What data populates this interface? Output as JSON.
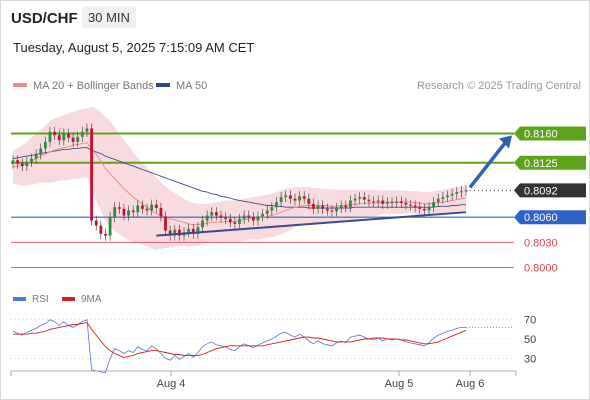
{
  "header": {
    "symbol": "USD/CHF",
    "timeframe": "30 MIN",
    "datetime": "Tuesday, August 5, 2025 7:15:09 AM CET"
  },
  "legend": [
    {
      "label": "MA 20 + Bollinger Bands",
      "color": "#f08a8a"
    },
    {
      "label": "MA 50",
      "color": "#2e4a85"
    }
  ],
  "credit": "Research © 2025 Trading Central",
  "colors": {
    "up": "#2e8b3a",
    "down": "#c8102e",
    "resistance": "#5ca51a",
    "support": "#2d62c8",
    "target_low": "#e04848",
    "current": "#333333",
    "trend": "#3a4a8c",
    "arrow": "#2d62a8",
    "band": "#f8d4d8",
    "ma20": "#e88888",
    "ma50": "#3a4d8a",
    "rsi": "#4f7ad0",
    "rsi_ma": "#d42020"
  },
  "chart_data": [
    {
      "type": "candlestick",
      "title": "USD/CHF",
      "timeframe": "30 MIN",
      "x_ticks": [
        "Aug 4",
        "Aug 5",
        "Aug 6"
      ],
      "ylim": [
        0.7985,
        0.82
      ],
      "grid": false,
      "price_levels": [
        {
          "label": "0.8160",
          "value": 0.816,
          "kind": "resistance"
        },
        {
          "label": "0.8125",
          "value": 0.8125,
          "kind": "resistance"
        },
        {
          "label": "0.8092",
          "value": 0.8092,
          "kind": "current"
        },
        {
          "label": "0.8060",
          "value": 0.806,
          "kind": "support"
        },
        {
          "label": "0.8030",
          "value": 0.803,
          "kind": "target_low"
        },
        {
          "label": "0.8000",
          "value": 0.8,
          "kind": "target_low"
        }
      ],
      "close": [
        0.8128,
        0.8124,
        0.8121,
        0.8126,
        0.813,
        0.8135,
        0.8142,
        0.815,
        0.8162,
        0.8158,
        0.8152,
        0.816,
        0.8155,
        0.815,
        0.8156,
        0.8162,
        0.8166,
        0.8056,
        0.805,
        0.804,
        0.8038,
        0.806,
        0.8072,
        0.807,
        0.8062,
        0.8068,
        0.8066,
        0.8074,
        0.807,
        0.8068,
        0.8075,
        0.8071,
        0.8061,
        0.8044,
        0.8038,
        0.8045,
        0.8038,
        0.8042,
        0.8046,
        0.804,
        0.8048,
        0.8056,
        0.8062,
        0.8066,
        0.8062,
        0.806,
        0.8058,
        0.8054,
        0.8052,
        0.8058,
        0.8062,
        0.806,
        0.8056,
        0.8061,
        0.8064,
        0.8068,
        0.8072,
        0.8078,
        0.8084,
        0.8086,
        0.8082,
        0.808,
        0.8085,
        0.8082,
        0.8076,
        0.807,
        0.8074,
        0.807,
        0.8068,
        0.8067,
        0.8071,
        0.8074,
        0.8072,
        0.808,
        0.8082,
        0.8084,
        0.8081,
        0.8079,
        0.8078,
        0.808,
        0.8076,
        0.8078,
        0.8077,
        0.8079,
        0.8077,
        0.8075,
        0.8074,
        0.8072,
        0.807,
        0.8068,
        0.8072,
        0.8078,
        0.8082,
        0.8084,
        0.8086,
        0.8088,
        0.809,
        0.8091,
        0.8092
      ],
      "ma20": [
        0.812,
        0.8121,
        0.8122,
        0.8124,
        0.8127,
        0.813,
        0.8133,
        0.8136,
        0.8138,
        0.814,
        0.8142,
        0.8143,
        0.8144,
        0.8146,
        0.8147,
        0.8148,
        0.8149,
        0.8142,
        0.8135,
        0.8127,
        0.8118,
        0.8112,
        0.8106,
        0.81,
        0.8094,
        0.8089,
        0.8084,
        0.808,
        0.8076,
        0.8072,
        0.8068,
        0.8064,
        0.8062,
        0.806,
        0.8058,
        0.8057,
        0.8055,
        0.8054,
        0.8052,
        0.8051,
        0.8051,
        0.8052,
        0.8053,
        0.8054,
        0.8054,
        0.8054,
        0.8055,
        0.8055,
        0.8055,
        0.8056,
        0.8057,
        0.8058,
        0.8059,
        0.8059,
        0.806,
        0.8061,
        0.8062,
        0.8064,
        0.8066,
        0.8068,
        0.807,
        0.8072,
        0.8073,
        0.8074,
        0.8074,
        0.8074,
        0.8074,
        0.8074,
        0.8074,
        0.8073,
        0.8073,
        0.8074,
        0.8074,
        0.8075,
        0.8075,
        0.8076,
        0.8076,
        0.8077,
        0.8077,
        0.8077,
        0.8078,
        0.8078,
        0.8078,
        0.8078,
        0.8078,
        0.8078,
        0.8078,
        0.8077,
        0.8077,
        0.8076,
        0.8076,
        0.8077,
        0.8077,
        0.8078,
        0.8079,
        0.808,
        0.8081,
        0.8082,
        0.8083
      ],
      "ma50": [
        0.813,
        0.8131,
        0.8132,
        0.8133,
        0.8134,
        0.8135,
        0.8136,
        0.8137,
        0.8138,
        0.8139,
        0.814,
        0.8141,
        0.8141,
        0.8142,
        0.8142,
        0.8143,
        0.8143,
        0.814,
        0.8138,
        0.8136,
        0.8133,
        0.8131,
        0.8129,
        0.8127,
        0.8125,
        0.8123,
        0.8121,
        0.8119,
        0.8117,
        0.8115,
        0.8113,
        0.8111,
        0.8109,
        0.8107,
        0.8105,
        0.8103,
        0.8101,
        0.8099,
        0.8097,
        0.8095,
        0.8093,
        0.8091,
        0.809,
        0.8088,
        0.8087,
        0.8085,
        0.8084,
        0.8083,
        0.8081,
        0.808,
        0.8079,
        0.8078,
        0.8077,
        0.8076,
        0.8075,
        0.8074,
        0.8074,
        0.8073,
        0.8073,
        0.8072,
        0.8072,
        0.8072,
        0.8072,
        0.8072,
        0.8071,
        0.8071,
        0.8071,
        0.8071,
        0.8071,
        0.8071,
        0.8071,
        0.8071,
        0.8071,
        0.8071,
        0.8072,
        0.8072,
        0.8072,
        0.8072,
        0.8072,
        0.8072,
        0.8072,
        0.8072,
        0.8072,
        0.8072,
        0.8072,
        0.8072,
        0.8072,
        0.8072,
        0.8072,
        0.8072,
        0.8072,
        0.8072,
        0.8073,
        0.8073,
        0.8073,
        0.8074,
        0.8074,
        0.8075,
        0.8075
      ],
      "band_upper": [
        0.814,
        0.8143,
        0.8146,
        0.815,
        0.8155,
        0.816,
        0.8165,
        0.817,
        0.8175,
        0.8178,
        0.818,
        0.8182,
        0.8184,
        0.8186,
        0.8188,
        0.8189,
        0.819,
        0.8192,
        0.819,
        0.8186,
        0.818,
        0.8175,
        0.8168,
        0.816,
        0.8152,
        0.8145,
        0.8138,
        0.8131,
        0.8125,
        0.8119,
        0.8113,
        0.8107,
        0.8102,
        0.8097,
        0.8092,
        0.8089,
        0.8085,
        0.8082,
        0.8079,
        0.8077,
        0.8076,
        0.8076,
        0.8076,
        0.8077,
        0.8078,
        0.8079,
        0.808,
        0.808,
        0.808,
        0.8081,
        0.8082,
        0.8083,
        0.8084,
        0.8085,
        0.8086,
        0.8087,
        0.8088,
        0.809,
        0.8092,
        0.8094,
        0.8095,
        0.8096,
        0.8096,
        0.8096,
        0.8096,
        0.8095,
        0.8095,
        0.8094,
        0.8094,
        0.8093,
        0.8093,
        0.8093,
        0.8093,
        0.8093,
        0.8093,
        0.8093,
        0.8093,
        0.8093,
        0.8093,
        0.8092,
        0.8092,
        0.8092,
        0.8092,
        0.8092,
        0.8092,
        0.8092,
        0.8091,
        0.8091,
        0.8091,
        0.809,
        0.809,
        0.8091,
        0.8092,
        0.8093,
        0.8094,
        0.8095,
        0.8096,
        0.8097,
        0.8098
      ],
      "band_lower": [
        0.81,
        0.8099,
        0.8098,
        0.8098,
        0.8099,
        0.81,
        0.8101,
        0.8102,
        0.8101,
        0.8102,
        0.8104,
        0.8104,
        0.8104,
        0.8106,
        0.8106,
        0.8107,
        0.8108,
        0.8092,
        0.808,
        0.8068,
        0.8056,
        0.8049,
        0.8044,
        0.804,
        0.8036,
        0.8033,
        0.803,
        0.8029,
        0.8027,
        0.8025,
        0.8023,
        0.8021,
        0.8022,
        0.8023,
        0.8024,
        0.8025,
        0.8025,
        0.8026,
        0.8025,
        0.8025,
        0.8026,
        0.8028,
        0.803,
        0.8031,
        0.803,
        0.8029,
        0.803,
        0.803,
        0.803,
        0.8031,
        0.8032,
        0.8033,
        0.8034,
        0.8033,
        0.8034,
        0.8035,
        0.8036,
        0.8038,
        0.804,
        0.8042,
        0.8045,
        0.8048,
        0.805,
        0.8052,
        0.8052,
        0.8053,
        0.8053,
        0.8054,
        0.8054,
        0.8053,
        0.8053,
        0.8055,
        0.8055,
        0.8057,
        0.8057,
        0.8059,
        0.8059,
        0.8061,
        0.8061,
        0.8062,
        0.8064,
        0.8064,
        0.8064,
        0.8064,
        0.8064,
        0.8064,
        0.8065,
        0.8063,
        0.8063,
        0.8062,
        0.8062,
        0.8063,
        0.8062,
        0.8063,
        0.8064,
        0.8065,
        0.8066,
        0.8067,
        0.8068
      ],
      "trendline": {
        "start": [
          31,
          0.8038
        ],
        "end": [
          98,
          0.8066
        ]
      }
    },
    {
      "type": "line",
      "title": "RSI",
      "legend": [
        "RSI",
        "9MA"
      ],
      "y_ticks": [
        70,
        50,
        30
      ],
      "ylim": [
        20,
        80
      ],
      "rsi": [
        58,
        56,
        54,
        57,
        59,
        61,
        64,
        66,
        70,
        68,
        64,
        68,
        64,
        62,
        65,
        68,
        70,
        18,
        17,
        16,
        15,
        30,
        40,
        38,
        35,
        38,
        36,
        42,
        39,
        38,
        43,
        40,
        35,
        30,
        28,
        33,
        29,
        32,
        35,
        31,
        36,
        42,
        45,
        47,
        44,
        43,
        42,
        39,
        38,
        42,
        45,
        43,
        41,
        44,
        46,
        48,
        50,
        53,
        56,
        57,
        54,
        52,
        55,
        52,
        48,
        45,
        48,
        45,
        44,
        43,
        46,
        48,
        46,
        52,
        53,
        54,
        52,
        50,
        49,
        51,
        48,
        50,
        49,
        50,
        49,
        47,
        46,
        45,
        44,
        43,
        46,
        51,
        54,
        56,
        58,
        59,
        61,
        62,
        62
      ],
      "ma9": [
        55,
        55,
        55,
        55,
        56,
        56,
        57,
        58,
        60,
        61,
        62,
        63,
        64,
        65,
        65,
        66,
        67,
        60,
        54,
        48,
        42,
        38,
        35,
        33,
        31,
        32,
        33,
        35,
        36,
        37,
        38,
        38,
        37,
        36,
        35,
        34,
        34,
        33,
        33,
        33,
        33,
        34,
        36,
        38,
        40,
        41,
        42,
        43,
        43,
        43,
        43,
        43,
        43,
        43,
        43,
        44,
        45,
        46,
        47,
        48,
        49,
        50,
        51,
        52,
        52,
        51,
        51,
        50,
        49,
        48,
        47,
        47,
        47,
        47,
        48,
        49,
        50,
        50,
        51,
        51,
        51,
        50,
        50,
        50,
        49,
        49,
        48,
        47,
        46,
        45,
        45,
        46,
        47,
        49,
        51,
        53,
        55,
        57,
        59
      ]
    }
  ]
}
